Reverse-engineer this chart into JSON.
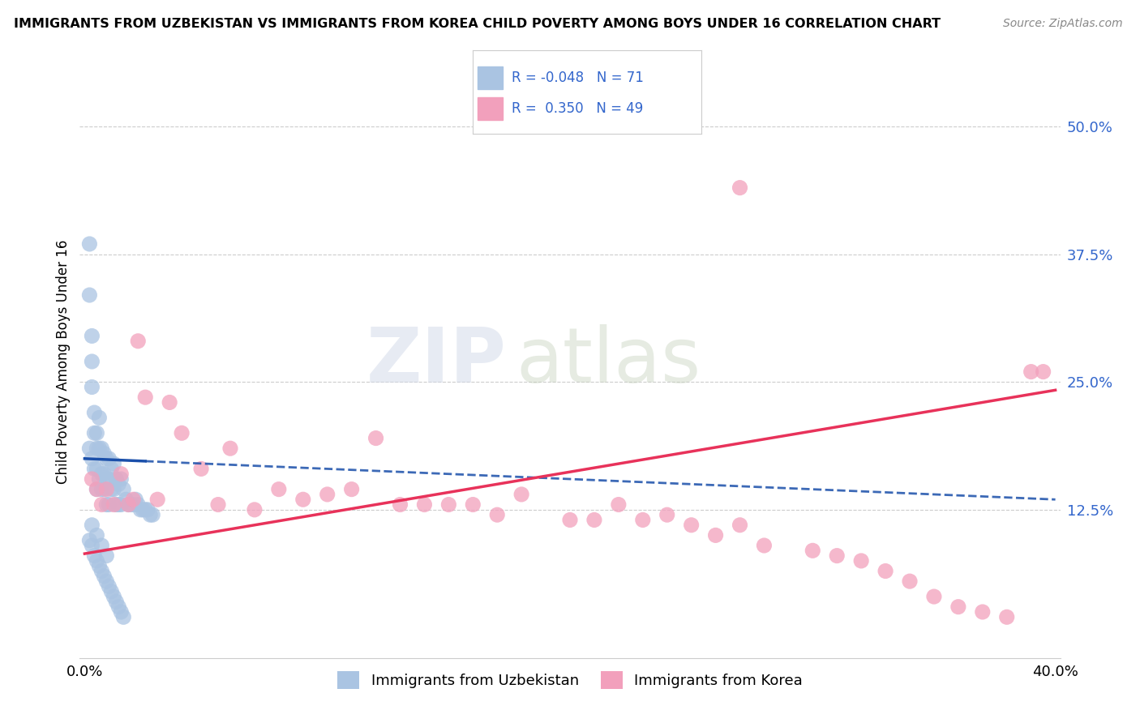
{
  "title": "IMMIGRANTS FROM UZBEKISTAN VS IMMIGRANTS FROM KOREA CHILD POVERTY AMONG BOYS UNDER 16 CORRELATION CHART",
  "source": "Source: ZipAtlas.com",
  "ylabel": "Child Poverty Among Boys Under 16",
  "ytick_labels": [
    "50.0%",
    "37.5%",
    "25.0%",
    "12.5%"
  ],
  "ytick_values": [
    0.5,
    0.375,
    0.25,
    0.125
  ],
  "xlim": [
    0.0,
    0.4
  ],
  "ylim": [
    -0.02,
    0.56
  ],
  "uzbekistan_color": "#aac4e2",
  "korea_color": "#f2a0bc",
  "uzbekistan_line_color": "#1a4faa",
  "korea_line_color": "#e8325a",
  "uzbekistan_R": -0.048,
  "uzbekistan_N": 71,
  "korea_R": 0.35,
  "korea_N": 49,
  "legend_label_uzbekistan": "Immigrants from Uzbekistan",
  "legend_label_korea": "Immigrants from Korea",
  "watermark_zip": "ZIP",
  "watermark_atlas": "atlas",
  "uzbekistan_line_x0": 0.0,
  "uzbekistan_line_y0": 0.175,
  "uzbekistan_line_x1": 0.4,
  "uzbekistan_line_y1": 0.135,
  "korea_line_x0": 0.0,
  "korea_line_y0": 0.082,
  "korea_line_x1": 0.4,
  "korea_line_y1": 0.242,
  "scatter_uzbekistan_x": [
    0.002,
    0.002,
    0.002,
    0.003,
    0.003,
    0.003,
    0.003,
    0.004,
    0.004,
    0.004,
    0.005,
    0.005,
    0.005,
    0.005,
    0.006,
    0.006,
    0.006,
    0.007,
    0.007,
    0.007,
    0.008,
    0.008,
    0.008,
    0.009,
    0.009,
    0.009,
    0.01,
    0.01,
    0.01,
    0.011,
    0.011,
    0.012,
    0.012,
    0.013,
    0.013,
    0.014,
    0.014,
    0.015,
    0.015,
    0.016,
    0.017,
    0.018,
    0.019,
    0.02,
    0.021,
    0.022,
    0.023,
    0.024,
    0.025,
    0.026,
    0.027,
    0.028,
    0.002,
    0.003,
    0.004,
    0.005,
    0.006,
    0.007,
    0.008,
    0.009,
    0.01,
    0.011,
    0.012,
    0.013,
    0.014,
    0.015,
    0.016,
    0.003,
    0.005,
    0.007,
    0.009
  ],
  "scatter_uzbekistan_y": [
    0.385,
    0.335,
    0.185,
    0.295,
    0.27,
    0.245,
    0.175,
    0.22,
    0.2,
    0.165,
    0.2,
    0.185,
    0.165,
    0.145,
    0.215,
    0.185,
    0.155,
    0.185,
    0.16,
    0.145,
    0.18,
    0.16,
    0.145,
    0.175,
    0.155,
    0.13,
    0.175,
    0.155,
    0.13,
    0.165,
    0.145,
    0.17,
    0.145,
    0.155,
    0.13,
    0.15,
    0.13,
    0.155,
    0.13,
    0.145,
    0.135,
    0.13,
    0.13,
    0.13,
    0.135,
    0.13,
    0.125,
    0.125,
    0.125,
    0.125,
    0.12,
    0.12,
    0.095,
    0.09,
    0.08,
    0.075,
    0.07,
    0.065,
    0.06,
    0.055,
    0.05,
    0.045,
    0.04,
    0.035,
    0.03,
    0.025,
    0.02,
    0.11,
    0.1,
    0.09,
    0.08
  ],
  "scatter_korea_x": [
    0.003,
    0.005,
    0.007,
    0.009,
    0.012,
    0.015,
    0.018,
    0.02,
    0.022,
    0.025,
    0.03,
    0.035,
    0.04,
    0.048,
    0.055,
    0.06,
    0.07,
    0.08,
    0.09,
    0.1,
    0.11,
    0.12,
    0.13,
    0.14,
    0.15,
    0.16,
    0.17,
    0.18,
    0.2,
    0.21,
    0.22,
    0.23,
    0.24,
    0.25,
    0.26,
    0.27,
    0.28,
    0.3,
    0.31,
    0.32,
    0.33,
    0.34,
    0.35,
    0.36,
    0.37,
    0.38,
    0.39,
    0.395,
    0.27
  ],
  "scatter_korea_y": [
    0.155,
    0.145,
    0.13,
    0.145,
    0.13,
    0.16,
    0.13,
    0.135,
    0.29,
    0.235,
    0.135,
    0.23,
    0.2,
    0.165,
    0.13,
    0.185,
    0.125,
    0.145,
    0.135,
    0.14,
    0.145,
    0.195,
    0.13,
    0.13,
    0.13,
    0.13,
    0.12,
    0.14,
    0.115,
    0.115,
    0.13,
    0.115,
    0.12,
    0.11,
    0.1,
    0.11,
    0.09,
    0.085,
    0.08,
    0.075,
    0.065,
    0.055,
    0.04,
    0.03,
    0.025,
    0.02,
    0.26,
    0.26,
    0.44
  ]
}
